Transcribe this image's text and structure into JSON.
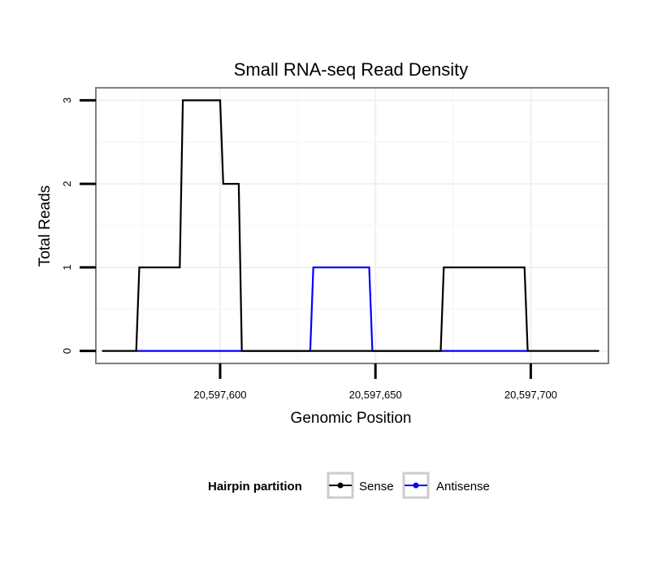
{
  "chart_data": {
    "type": "line",
    "title": "Small RNA-seq Read Density",
    "xlabel": "Genomic Position",
    "ylabel": "Total Reads",
    "xlim": [
      20597560,
      20597725
    ],
    "ylim": [
      -0.15,
      3.15
    ],
    "x_ticks": [
      20597600,
      20597650,
      20597700
    ],
    "x_tick_labels": [
      "20,597,600",
      "20,597,650",
      "20,597,700"
    ],
    "y_ticks": [
      0,
      1,
      2,
      3
    ],
    "y_tick_labels": [
      "0",
      "1",
      "2",
      "3"
    ],
    "grid": true,
    "legend": {
      "title": "Hairpin partition",
      "position": "bottom",
      "entries": [
        "Sense",
        "Antisense"
      ]
    },
    "series": [
      {
        "name": "Sense",
        "color": "#000000",
        "x": [
          20597562,
          20597573,
          20597574,
          20597587,
          20597588,
          20597600,
          20597601,
          20597606,
          20597607,
          20597671,
          20597672,
          20597698,
          20597699,
          20597722
        ],
        "y": [
          0,
          0,
          1,
          1,
          3,
          3,
          2,
          2,
          0,
          0,
          1,
          1,
          0,
          0
        ]
      },
      {
        "name": "Antisense",
        "color": "#0000ff",
        "x": [
          20597573,
          20597607,
          20597629,
          20597630,
          20597648,
          20597649,
          20597671,
          20597699
        ],
        "y": [
          0,
          0,
          0,
          1,
          1,
          0,
          0,
          0
        ]
      }
    ]
  }
}
